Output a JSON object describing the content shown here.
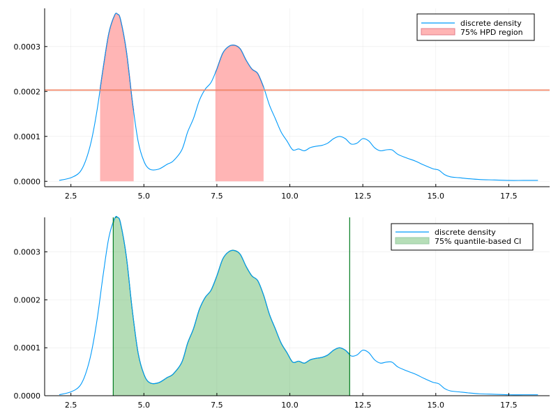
{
  "chart_data": [
    {
      "type": "line",
      "panel": "top",
      "title": "",
      "xlabel": "",
      "ylabel": "",
      "xlim": [
        1.6,
        18.9
      ],
      "ylim": [
        -1.2e-05,
        0.000385
      ],
      "xticks": [
        2.5,
        5.0,
        7.5,
        10.0,
        12.5,
        15.0,
        17.5
      ],
      "xtick_labels": [
        "2.5",
        "5.0",
        "7.5",
        "10.0",
        "12.5",
        "15.0",
        "17.5"
      ],
      "yticks": [
        0,
        0.0001,
        0.0002,
        0.0003
      ],
      "ytick_labels": [
        "0.0000",
        "0.0001",
        "0.0002",
        "0.0003"
      ],
      "grid": true,
      "legend_position": "top-right",
      "series": [
        {
          "name": "discrete density",
          "color": "#009AFA",
          "x": [
            2.1,
            2.5,
            2.8,
            3.0,
            3.2,
            3.4,
            3.6,
            3.8,
            4.0,
            4.1,
            4.2,
            4.4,
            4.6,
            4.8,
            5.0,
            5.2,
            5.5,
            5.8,
            6.0,
            6.3,
            6.5,
            6.7,
            6.9,
            7.1,
            7.3,
            7.5,
            7.7,
            7.9,
            8.1,
            8.3,
            8.5,
            8.7,
            8.9,
            9.1,
            9.3,
            9.5,
            9.7,
            9.9,
            10.1,
            10.3,
            10.5,
            10.7,
            10.9,
            11.1,
            11.3,
            11.5,
            11.7,
            11.9,
            12.1,
            12.3,
            12.5,
            12.7,
            12.9,
            13.1,
            13.3,
            13.5,
            13.7,
            14.0,
            14.3,
            14.6,
            14.9,
            15.1,
            15.3,
            15.5,
            15.8,
            16.1,
            16.5,
            17.0,
            17.5,
            18.0,
            18.5
          ],
          "y": [
            2e-06,
            8e-06,
            2e-05,
            4.5e-05,
            9e-05,
            0.00016,
            0.00025,
            0.00033,
            0.00037,
            0.000372,
            0.00036,
            0.00029,
            0.00018,
            9e-05,
            4.5e-05,
            2.7e-05,
            2.7e-05,
            3.8e-05,
            4.5e-05,
            7e-05,
            0.00011,
            0.00014,
            0.00018,
            0.000205,
            0.00022,
            0.00025,
            0.000285,
            0.0003,
            0.000303,
            0.000295,
            0.00027,
            0.00025,
            0.00024,
            0.00021,
            0.00017,
            0.00014,
            0.00011,
            9e-05,
            7e-05,
            7.2e-05,
            6.8e-05,
            7.5e-05,
            7.8e-05,
            8e-05,
            8.5e-05,
            9.5e-05,
            0.0001,
            9.5e-05,
            8.3e-05,
            8.5e-05,
            9.5e-05,
            9e-05,
            7.5e-05,
            6.8e-05,
            7e-05,
            7e-05,
            6e-05,
            5.2e-05,
            4.5e-05,
            3.6e-05,
            2.8e-05,
            2.5e-05,
            1.5e-05,
            1e-05,
            8e-06,
            6e-06,
            4e-06,
            3e-06,
            2e-06,
            2e-06,
            2e-06
          ]
        }
      ],
      "shaded_regions": [
        {
          "name": "75% HPD region",
          "color": "#FF6B6B",
          "from": 3.5,
          "to": 4.65
        },
        {
          "from": 7.45,
          "to": 9.1
        }
      ],
      "outline_color": "#C4001E",
      "hline": {
        "y": 0.000203,
        "color": "#F08060"
      },
      "vlines": [],
      "legend": [
        {
          "label": "discrete density",
          "kind": "line",
          "color": "#009AFA"
        },
        {
          "label": "75% HPD region",
          "kind": "fill",
          "color": "#FF6B6B"
        }
      ]
    },
    {
      "type": "line",
      "panel": "bottom",
      "title": "",
      "xlabel": "",
      "ylabel": "",
      "xlim": [
        1.6,
        18.9
      ],
      "ylim": [
        0,
        0.000372
      ],
      "xticks": [
        2.5,
        5.0,
        7.5,
        10.0,
        12.5,
        15.0,
        17.5
      ],
      "xtick_labels": [
        "2.5",
        "5.0",
        "7.5",
        "10.0",
        "12.5",
        "15.0",
        "17.5"
      ],
      "yticks": [
        0,
        0.0001,
        0.0002,
        0.0003
      ],
      "ytick_labels": [
        "0.0000",
        "0.0001",
        "0.0002",
        "0.0003"
      ],
      "grid": true,
      "legend_position": "top-right",
      "series": [
        {
          "name": "discrete density",
          "color": "#009AFA",
          "x": [
            2.1,
            2.5,
            2.8,
            3.0,
            3.2,
            3.4,
            3.6,
            3.8,
            4.0,
            4.1,
            4.2,
            4.4,
            4.6,
            4.8,
            5.0,
            5.2,
            5.5,
            5.8,
            6.0,
            6.3,
            6.5,
            6.7,
            6.9,
            7.1,
            7.3,
            7.5,
            7.7,
            7.9,
            8.1,
            8.3,
            8.5,
            8.7,
            8.9,
            9.1,
            9.3,
            9.5,
            9.7,
            9.9,
            10.1,
            10.3,
            10.5,
            10.7,
            10.9,
            11.1,
            11.3,
            11.5,
            11.7,
            11.9,
            12.1,
            12.3,
            12.5,
            12.7,
            12.9,
            13.1,
            13.3,
            13.5,
            13.7,
            14.0,
            14.3,
            14.6,
            14.9,
            15.1,
            15.3,
            15.5,
            15.8,
            16.1,
            16.5,
            17.0,
            17.5,
            18.0,
            18.5
          ],
          "y": [
            2e-06,
            8e-06,
            2e-05,
            4.5e-05,
            9e-05,
            0.00016,
            0.00025,
            0.00033,
            0.00037,
            0.000372,
            0.00036,
            0.00029,
            0.00018,
            9e-05,
            4.5e-05,
            2.7e-05,
            2.7e-05,
            3.8e-05,
            4.5e-05,
            7e-05,
            0.00011,
            0.00014,
            0.00018,
            0.000205,
            0.00022,
            0.00025,
            0.000285,
            0.0003,
            0.000303,
            0.000295,
            0.00027,
            0.00025,
            0.00024,
            0.00021,
            0.00017,
            0.00014,
            0.00011,
            9e-05,
            7e-05,
            7.2e-05,
            6.8e-05,
            7.5e-05,
            7.8e-05,
            8e-05,
            8.5e-05,
            9.5e-05,
            0.0001,
            9.5e-05,
            8.3e-05,
            8.5e-05,
            9.5e-05,
            9e-05,
            7.5e-05,
            6.8e-05,
            7e-05,
            7e-05,
            6e-05,
            5.2e-05,
            4.5e-05,
            3.6e-05,
            2.8e-05,
            2.5e-05,
            1.5e-05,
            1e-05,
            8e-06,
            6e-06,
            4e-06,
            3e-06,
            2e-06,
            2e-06,
            2e-06
          ]
        }
      ],
      "shaded_regions": [
        {
          "name": "75% quantile-based CI",
          "color": "#4CAF50",
          "from": 3.95,
          "to": 12.05
        }
      ],
      "outline_color": "#007A1E",
      "hline": null,
      "vlines": [
        {
          "x": 3.95,
          "color": "#007A1E"
        },
        {
          "x": 12.05,
          "color": "#007A1E"
        }
      ],
      "legend": [
        {
          "label": "discrete density",
          "kind": "line",
          "color": "#009AFA"
        },
        {
          "label": "75% quantile-based CI",
          "kind": "fill",
          "color": "#4CAF50"
        }
      ]
    }
  ]
}
